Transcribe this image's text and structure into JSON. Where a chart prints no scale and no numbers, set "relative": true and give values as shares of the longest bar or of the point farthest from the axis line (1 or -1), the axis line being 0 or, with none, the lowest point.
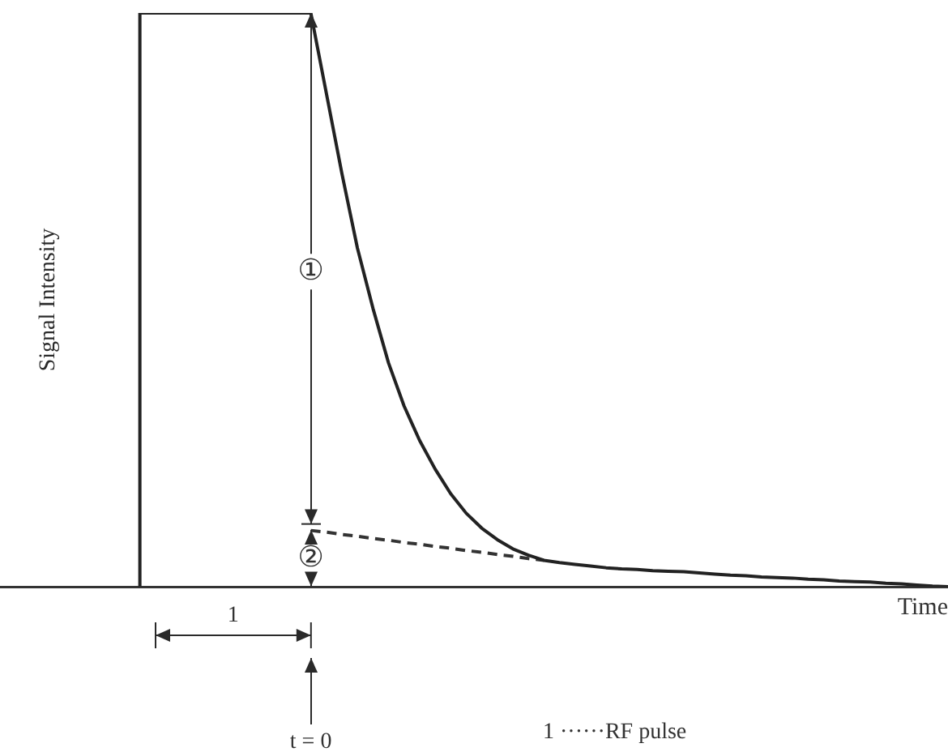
{
  "chart_data": {
    "type": "line",
    "relative": true,
    "xlabel": "Time",
    "ylabel": "Signal Intensity",
    "grid": false,
    "legend": false,
    "tick_labels": false,
    "marker": "none",
    "categories": [
      null,
      null,
      null,
      null,
      null,
      null,
      null,
      null,
      null,
      null,
      null,
      null,
      null,
      null,
      null,
      null,
      null,
      null,
      null,
      null,
      null,
      null,
      null,
      null,
      null,
      null,
      null,
      null,
      null,
      null,
      null,
      null,
      null,
      null,
      null,
      null,
      null,
      null,
      null,
      null,
      null,
      null,
      null,
      null,
      null,
      null,
      null,
      null,
      null,
      null,
      null,
      null,
      null,
      null,
      null,
      null,
      null,
      null,
      null,
      null,
      null,
      null
    ],
    "series": [
      {
        "type": "step",
        "color": "#222222",
        "values": [
          null,
          null,
          null,
          null,
          null,
          null,
          null,
          null,
          null,
          0,
          1,
          1,
          1,
          1,
          1,
          1,
          1,
          1,
          1,
          1,
          1,
          null,
          null,
          null,
          null,
          null,
          null,
          null,
          null,
          null,
          null,
          null,
          null,
          null,
          null,
          null,
          null,
          null,
          null,
          null,
          null,
          null,
          null,
          null,
          null,
          null,
          null,
          null,
          null,
          null,
          null,
          null,
          null,
          null,
          null,
          null,
          null,
          null,
          null,
          null,
          null,
          null
        ]
      },
      {
        "color": "#222222",
        "values": [
          null,
          null,
          null,
          null,
          null,
          null,
          null,
          null,
          null,
          null,
          null,
          null,
          null,
          null,
          null,
          null,
          null,
          null,
          null,
          null,
          1,
          0.86,
          0.72,
          0.59,
          0.485,
          0.39,
          0.315,
          0.255,
          0.205,
          0.162,
          0.128,
          0.102,
          0.082,
          0.066,
          0.055,
          0.046,
          0.042,
          0.039,
          0.036,
          0.033,
          0.031,
          0.03,
          0.028,
          0.027,
          0.026,
          0.024,
          0.022,
          0.02,
          0.019,
          0.017,
          0.016,
          0.015,
          0.013,
          0.012,
          0.01,
          0.009,
          0.008,
          0.006,
          0.005,
          0.003,
          0.001,
          0
        ]
      },
      {
        "color": "#333333",
        "line_style": "dashed",
        "values": [
          null,
          null,
          null,
          null,
          null,
          null,
          null,
          null,
          null,
          null,
          null,
          null,
          null,
          null,
          null,
          null,
          null,
          null,
          null,
          null,
          0.098,
          0.095,
          0.091,
          0.088,
          0.084,
          0.081,
          0.077,
          0.074,
          0.07,
          0.067,
          0.063,
          0.06,
          0.056,
          0.053,
          0.049,
          0.046,
          null,
          null,
          null,
          null,
          null,
          null,
          null,
          null,
          null,
          null,
          null,
          null,
          null,
          null,
          null,
          null,
          null,
          null,
          null,
          null,
          null,
          null,
          null,
          null,
          null,
          null
        ]
      }
    ],
    "annotations": [
      "①",
      "②",
      "1",
      "t = 0",
      "1 ······RF pulse"
    ]
  }
}
